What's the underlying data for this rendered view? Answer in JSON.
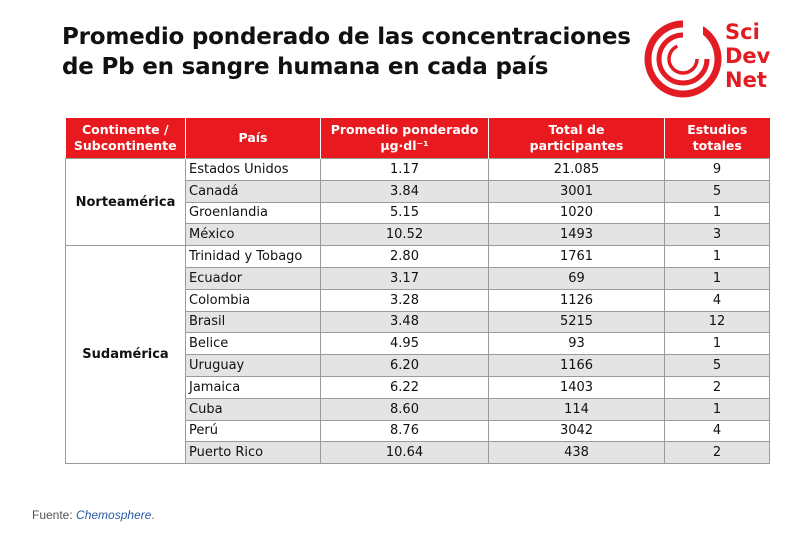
{
  "header": {
    "title_line1": "Promedio ponderado de las concentraciones",
    "title_line2": "de Pb en sangre humana en cada país"
  },
  "logo": {
    "line1": "Sci",
    "line2": "Dev",
    "line3": "Net",
    "brand_color": "#e31b23"
  },
  "table": {
    "headers": {
      "continent_l1": "Continente /",
      "continent_l2": "Subcontinente",
      "country": "País",
      "avg_l1": "Promedio ponderado",
      "avg_l2": "µg·dl⁻¹",
      "total_l1": "Total de",
      "total_l2": "participantes",
      "studies_l1": "Estudios",
      "studies_l2": "totales"
    },
    "header_color": "#e8191f",
    "groups": [
      {
        "continent": "Norteamérica",
        "rows": [
          {
            "country": "Estados Unidos",
            "avg": "1.17",
            "participants": "21.085",
            "studies": "9"
          },
          {
            "country": "Canadá",
            "avg": "3.84",
            "participants": "3001",
            "studies": "5"
          },
          {
            "country": "Groenlandia",
            "avg": "5.15",
            "participants": "1020",
            "studies": "1"
          },
          {
            "country": "México",
            "avg": "10.52",
            "participants": "1493",
            "studies": "3"
          }
        ]
      },
      {
        "continent": "Sudamérica",
        "rows": [
          {
            "country": "Trinidad y Tobago",
            "avg": "2.80",
            "participants": "1761",
            "studies": "1"
          },
          {
            "country": "Ecuador",
            "avg": "3.17",
            "participants": "69",
            "studies": "1"
          },
          {
            "country": "Colombia",
            "avg": "3.28",
            "participants": "1126",
            "studies": "4"
          },
          {
            "country": "Brasil",
            "avg": "3.48",
            "participants": "5215",
            "studies": "12"
          },
          {
            "country": "Belice",
            "avg": "4.95",
            "participants": "93",
            "studies": "1"
          },
          {
            "country": "Uruguay",
            "avg": "6.20",
            "participants": "1166",
            "studies": "5"
          },
          {
            "country": "Jamaica",
            "avg": "6.22",
            "participants": "1403",
            "studies": "2"
          },
          {
            "country": "Cuba",
            "avg": "8.60",
            "participants": "114",
            "studies": "1"
          },
          {
            "country": "Perú",
            "avg": "8.76",
            "participants": "3042",
            "studies": "4"
          },
          {
            "country": "Puerto Rico",
            "avg": "10.64",
            "participants": "438",
            "studies": "2"
          }
        ]
      }
    ]
  },
  "source": {
    "label": "Fuente: ",
    "name": "Chemosphere",
    "suffix": "."
  }
}
